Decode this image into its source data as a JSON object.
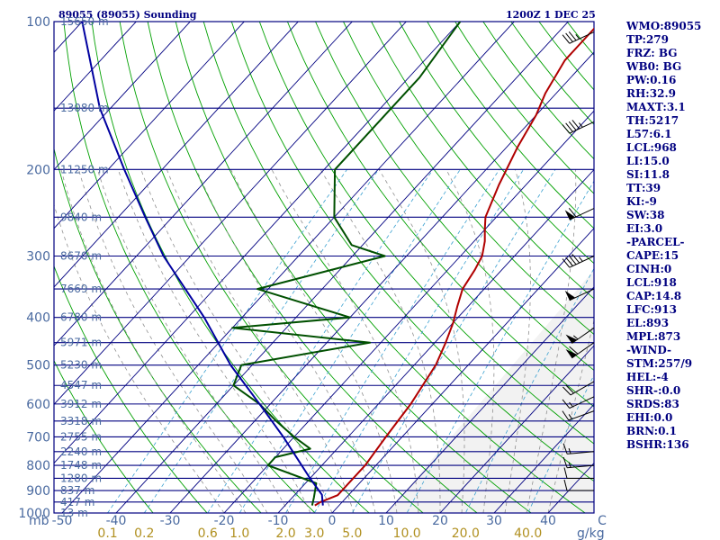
{
  "header": {
    "station": "89055 (89055) Sounding",
    "time": "1200Z  1 DEC 25"
  },
  "colors": {
    "isobar": "#000080",
    "skewed_isotherm": "#000080",
    "dry_adiabat": "#00a000",
    "moist_adiabat": "#909090",
    "mixing_ratio": "#3aa0d0",
    "temperature": "#b00000",
    "dewpoint": "#005000",
    "parcel": "#0000a0",
    "wind_barb": "#000000",
    "text": "#000080",
    "pressure_label": "#4a6aa0"
  },
  "indices": [
    "WMO:89055",
    "TP:279",
    "FRZ: BG",
    "WB0: BG",
    "PW:0.16",
    "RH:32.9",
    "MAXT:3.1",
    "TH:5217",
    "L57:6.1",
    "LCL:968",
    "LI:15.0",
    "SI:11.8",
    "TT:39",
    "KI:-9",
    "SW:38",
    "EI:3.0",
    "-PARCEL-",
    "CAPE:15",
    "CINH:0",
    "LCL:918",
    "CAP:14.8",
    "LFC:913",
    "EL:893",
    "MPL:873",
    "-WIND-",
    "STM:257/9",
    "HEL:-4",
    "SHR-:0.0",
    "SRDS:83",
    "EHI:0.0",
    "BRN:0.1",
    "BSHR:136"
  ],
  "chart_data": {
    "type": "skew-t",
    "title": "89055 (89055) Sounding",
    "axes": {
      "y_label": "mb",
      "y_scale": "log pressure",
      "ylim": [
        1000,
        100
      ],
      "y_ticks": [
        "100",
        "200",
        "300",
        "400",
        "500",
        "600",
        "700",
        "800",
        "900",
        "1000"
      ],
      "x_label": "°C",
      "xlim": [
        -50,
        50
      ],
      "x_ticks": [
        "-50",
        "-40",
        "-30",
        "-20",
        "-10",
        "0",
        "10",
        "20",
        "30",
        "40",
        "C"
      ],
      "mixing_ratio_label": "g/kg",
      "mixing_ratio_ticks": [
        {
          "label": "0.1",
          "value": 0.1
        },
        {
          "label": "0.2",
          "value": 0.2
        },
        {
          "label": "0.6",
          "value": 0.6
        },
        {
          "label": "1.0",
          "value": 1.0
        },
        {
          "label": "2.0",
          "value": 2.0
        },
        {
          "label": "3.0",
          "value": 3.0
        },
        {
          "label": "5.0",
          "value": 5.0
        },
        {
          "label": "10.0",
          "value": 10.0
        },
        {
          "label": "20.0",
          "value": 20.0
        },
        {
          "label": "40.0",
          "value": 40.0
        }
      ]
    },
    "height_levels": [
      {
        "p": 100,
        "label": "15650 m"
      },
      {
        "p": 150,
        "label": "13080 m"
      },
      {
        "p": 200,
        "label": "11250 m"
      },
      {
        "p": 250,
        "label": "9840 m"
      },
      {
        "p": 300,
        "label": "8670 m"
      },
      {
        "p": 350,
        "label": "7669 m"
      },
      {
        "p": 400,
        "label": "6780 m"
      },
      {
        "p": 450,
        "label": "5971 m"
      },
      {
        "p": 500,
        "label": "5230 m"
      },
      {
        "p": 550,
        "label": "4547 m"
      },
      {
        "p": 600,
        "label": "3912 m"
      },
      {
        "p": 650,
        "label": "3318 m"
      },
      {
        "p": 700,
        "label": "2755 m"
      },
      {
        "p": 750,
        "label": "2240 m"
      },
      {
        "p": 800,
        "label": "1748 m"
      },
      {
        "p": 850,
        "label": "1280 m"
      },
      {
        "p": 900,
        "label": "837 m"
      },
      {
        "p": 950,
        "label": "417 m"
      },
      {
        "p": 1000,
        "label": "13 m"
      }
    ],
    "series": [
      {
        "name": "Temperature",
        "points": [
          {
            "p": 965,
            "t": -4.5
          },
          {
            "p": 950,
            "t": -4
          },
          {
            "p": 920,
            "t": -2
          },
          {
            "p": 880,
            "t": -2
          },
          {
            "p": 800,
            "t": -2
          },
          {
            "p": 700,
            "t": -3
          },
          {
            "p": 600,
            "t": -4
          },
          {
            "p": 500,
            "t": -6
          },
          {
            "p": 450,
            "t": -8
          },
          {
            "p": 410,
            "t": -10
          },
          {
            "p": 380,
            "t": -12
          },
          {
            "p": 350,
            "t": -14
          },
          {
            "p": 320,
            "t": -15
          },
          {
            "p": 300,
            "t": -16
          },
          {
            "p": 280,
            "t": -18
          },
          {
            "p": 265,
            "t": -20
          },
          {
            "p": 250,
            "t": -22
          },
          {
            "p": 215,
            "t": -25
          },
          {
            "p": 180,
            "t": -28
          },
          {
            "p": 155,
            "t": -30
          },
          {
            "p": 140,
            "t": -32
          },
          {
            "p": 120,
            "t": -34
          },
          {
            "p": 100,
            "t": -34
          }
        ]
      },
      {
        "name": "Dewpoint",
        "points": [
          {
            "p": 965,
            "t": -5
          },
          {
            "p": 930,
            "t": -6
          },
          {
            "p": 870,
            "t": -8
          },
          {
            "p": 800,
            "t": -20
          },
          {
            "p": 770,
            "t": -20
          },
          {
            "p": 740,
            "t": -15
          },
          {
            "p": 700,
            "t": -20
          },
          {
            "p": 650,
            "t": -26
          },
          {
            "p": 600,
            "t": -32
          },
          {
            "p": 550,
            "t": -40
          },
          {
            "p": 500,
            "t": -42
          },
          {
            "p": 450,
            "t": -22
          },
          {
            "p": 420,
            "t": -50
          },
          {
            "p": 400,
            "t": -30
          },
          {
            "p": 350,
            "t": -52
          },
          {
            "p": 300,
            "t": -34
          },
          {
            "p": 285,
            "t": -42
          },
          {
            "p": 250,
            "t": -50
          },
          {
            "p": 200,
            "t": -58
          },
          {
            "p": 160,
            "t": -58
          },
          {
            "p": 130,
            "t": -58
          },
          {
            "p": 100,
            "t": -60
          }
        ]
      },
      {
        "name": "Parcel",
        "points": [
          {
            "p": 965,
            "t": -3
          },
          {
            "p": 918,
            "t": -5
          },
          {
            "p": 850,
            "t": -10
          },
          {
            "p": 700,
            "t": -22
          },
          {
            "p": 600,
            "t": -32
          },
          {
            "p": 500,
            "t": -44
          },
          {
            "p": 400,
            "t": -57
          },
          {
            "p": 300,
            "t": -75
          },
          {
            "p": 250,
            "t": -85
          },
          {
            "p": 200,
            "t": -97
          },
          {
            "p": 150,
            "t": -112
          },
          {
            "p": 100,
            "t": -130
          }
        ]
      }
    ],
    "wind_barbs": [
      {
        "p": 900,
        "dir": 270,
        "speed_kt": 10
      },
      {
        "p": 850,
        "dir": 270,
        "speed_kt": 10
      },
      {
        "p": 800,
        "dir": 265,
        "speed_kt": 15
      },
      {
        "p": 750,
        "dir": 265,
        "speed_kt": 15
      },
      {
        "p": 620,
        "dir": 250,
        "speed_kt": 15
      },
      {
        "p": 580,
        "dir": 245,
        "speed_kt": 15
      },
      {
        "p": 540,
        "dir": 240,
        "speed_kt": 20
      },
      {
        "p": 450,
        "dir": 235,
        "speed_kt": 60
      },
      {
        "p": 420,
        "dir": 235,
        "speed_kt": 55
      },
      {
        "p": 350,
        "dir": 245,
        "speed_kt": 50
      },
      {
        "p": 300,
        "dir": 245,
        "speed_kt": 45
      },
      {
        "p": 240,
        "dir": 245,
        "speed_kt": 60
      },
      {
        "p": 160,
        "dir": 245,
        "speed_kt": 45
      },
      {
        "p": 105,
        "dir": 245,
        "speed_kt": 35
      }
    ]
  }
}
